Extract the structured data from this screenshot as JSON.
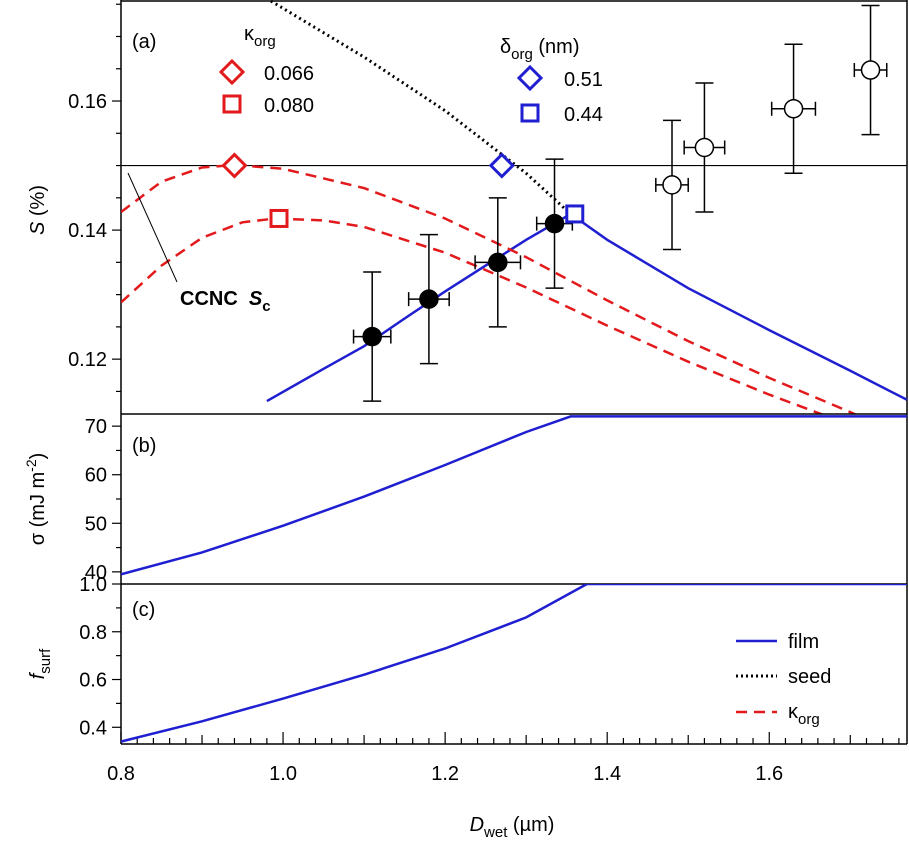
{
  "chart_data": [
    {
      "panel": "(a)",
      "type": "scatter",
      "xlabel": "D_wet (µm)",
      "ylabel": "S (%)",
      "xlim": [
        0.8,
        1.77
      ],
      "ylim": [
        0.1115,
        0.1755
      ],
      "yticks": [
        0.12,
        0.14,
        0.16
      ],
      "reference_line": {
        "label": "CCNC S_c",
        "y": 0.15
      },
      "series": [
        {
          "name": "film",
          "style": "solid",
          "color": "#1f1fd1",
          "x": [
            0.98,
            1.05,
            1.1,
            1.15,
            1.2,
            1.25,
            1.3,
            1.355,
            1.4,
            1.5,
            1.6,
            1.7,
            1.77
          ],
          "y": [
            0.1135,
            0.1185,
            0.122,
            0.1263,
            0.1305,
            0.1345,
            0.1385,
            0.1425,
            0.1385,
            0.131,
            0.1245,
            0.1182,
            0.1137
          ]
        },
        {
          "name": "seed",
          "style": "dotted",
          "color": "#000000",
          "x": [
            0.985,
            1.1,
            1.2,
            1.3,
            1.355
          ],
          "y": [
            0.1755,
            0.1668,
            0.1585,
            0.1488,
            0.1425
          ]
        },
        {
          "name": "κ_org 0.066",
          "style": "dashed",
          "color": "#e31a1c",
          "x": [
            0.8,
            0.85,
            0.9,
            0.94,
            1.0,
            1.1,
            1.2,
            1.3,
            1.4,
            1.5,
            1.6,
            1.7,
            1.74
          ],
          "y": [
            0.1428,
            0.1475,
            0.1497,
            0.1501,
            0.1495,
            0.1465,
            0.1418,
            0.1358,
            0.1291,
            0.1228,
            0.1171,
            0.1118,
            0.1095
          ]
        },
        {
          "name": "κ_org 0.080",
          "style": "dashed",
          "color": "#e31a1c",
          "x": [
            0.8,
            0.85,
            0.9,
            0.95,
            0.99,
            1.05,
            1.1,
            1.2,
            1.3,
            1.4,
            1.5,
            1.6,
            1.7,
            1.75
          ],
          "y": [
            0.1288,
            0.1345,
            0.1388,
            0.1412,
            0.1418,
            0.1415,
            0.1405,
            0.1365,
            0.1311,
            0.1252,
            0.1196,
            0.1145,
            0.1098,
            0.1075
          ]
        }
      ],
      "points_filled": {
        "x": [
          1.11,
          1.18,
          1.265,
          1.335
        ],
        "y": [
          0.1235,
          0.1293,
          0.135,
          0.141
        ],
        "x_err": [
          0.023,
          0.025,
          0.028,
          0.022
        ],
        "y_err": [
          0.01,
          0.01,
          0.01,
          0.01
        ]
      },
      "points_open": {
        "x": [
          1.48,
          1.52,
          1.63,
          1.725
        ],
        "y": [
          0.147,
          0.1528,
          0.1588,
          0.1648
        ],
        "x_err": [
          0.02,
          0.025,
          0.027,
          0.02
        ],
        "y_err": [
          0.01,
          0.01,
          0.01,
          0.01
        ]
      },
      "markers": [
        {
          "shape": "diamond",
          "color": "#e31a1c",
          "x": 0.94,
          "y": 0.15
        },
        {
          "shape": "square",
          "color": "#e31a1c",
          "x": 0.995,
          "y": 0.1418
        },
        {
          "shape": "diamond",
          "color": "#1f1fd1",
          "x": 1.27,
          "y": 0.15
        },
        {
          "shape": "square",
          "color": "#1f1fd1",
          "x": 1.36,
          "y": 0.1425
        }
      ],
      "legend_kappa": {
        "title_main": "κ",
        "title_sub": "org",
        "entries": [
          {
            "shape": "diamond",
            "color": "#e31a1c",
            "label": "0.066"
          },
          {
            "shape": "square",
            "color": "#e31a1c",
            "label": "0.080"
          }
        ]
      },
      "legend_delta": {
        "title_main": "δ",
        "title_sub": "org",
        "title_unit": " (nm)",
        "entries": [
          {
            "shape": "diamond",
            "color": "#1f1fd1",
            "label": "0.51"
          },
          {
            "shape": "square",
            "color": "#1f1fd1",
            "label": "0.44"
          }
        ]
      }
    },
    {
      "panel": "(b)",
      "type": "line",
      "ylabel": "σ (mJ m⁻²)",
      "ylim": [
        37.5,
        72.5
      ],
      "yticks": [
        40,
        50,
        60,
        70
      ],
      "series": [
        {
          "name": "film",
          "color": "#1f1fd1",
          "x": [
            0.8,
            0.9,
            1.0,
            1.1,
            1.2,
            1.3,
            1.355,
            1.77
          ],
          "y": [
            39.5,
            44.0,
            49.5,
            55.5,
            62.0,
            68.8,
            72.0,
            72.0
          ]
        }
      ]
    },
    {
      "panel": "(c)",
      "type": "line",
      "ylabel": "f_surf",
      "ylim": [
        0.33,
        1.0
      ],
      "yticks": [
        0.4,
        0.6,
        0.8,
        1.0
      ],
      "series": [
        {
          "name": "film",
          "color": "#1f1fd1",
          "x": [
            0.8,
            0.9,
            1.0,
            1.1,
            1.2,
            1.3,
            1.375,
            1.77
          ],
          "y": [
            0.34,
            0.425,
            0.52,
            0.62,
            0.73,
            0.86,
            1.0,
            1.0
          ]
        }
      ],
      "legend": [
        {
          "label": "film",
          "style": "solid",
          "color": "#1f1fd1"
        },
        {
          "label": "seed",
          "style": "dotted",
          "color": "#000000"
        },
        {
          "label": "κ_org",
          "style": "dashed",
          "color": "#e31a1c"
        }
      ]
    }
  ],
  "x_axis": {
    "label_main": "D",
    "label_sub": "wet",
    "label_unit": " (µm)",
    "range": [
      0.8,
      1.77
    ],
    "ticks": [
      0.8,
      1.0,
      1.2,
      1.4,
      1.6
    ],
    "tick_labels": [
      "0.8",
      "1.0",
      "1.2",
      "1.4",
      "1.6"
    ]
  },
  "labels": {
    "panel_a": "(a)",
    "panel_b": "(b)",
    "panel_c": "(c)",
    "ylabel_a_main": "S",
    "ylabel_a_unit": " (%)",
    "ylabel_b_main": "σ (mJ m",
    "ylabel_b_sup": "-2",
    "ylabel_b_tail": ")",
    "ylabel_c_main": "f",
    "ylabel_c_sub": "surf",
    "annotation_main": "CCNC  ",
    "annotation_s": "S",
    "annotation_sub": "c",
    "legend_film": "film",
    "legend_seed": "seed",
    "legend_kappa_main": "κ",
    "legend_kappa_sub": "org"
  },
  "colors": {
    "film": "#1f1fd1",
    "seed": "#000000",
    "kappa": "#e31a1c",
    "reference": "#000000"
  }
}
